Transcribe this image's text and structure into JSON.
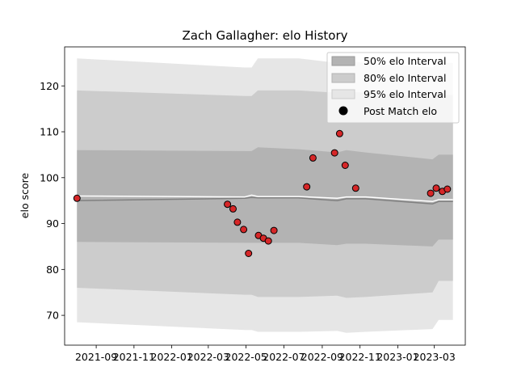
{
  "chart_data": {
    "type": "line",
    "title": "Zach Gallagher: elo History",
    "xlabel": "",
    "ylabel": "elo score",
    "xlim": [
      "2021-07-12",
      "2023-04-20"
    ],
    "ylim": [
      63.5,
      128.5
    ],
    "x_ticks": [
      "2021-09",
      "2021-11",
      "2022-01",
      "2022-03",
      "2022-05",
      "2022-07",
      "2022-09",
      "2022-11",
      "2023-01",
      "2023-03"
    ],
    "y_ticks": [
      70,
      80,
      90,
      100,
      110,
      120
    ],
    "grid": false,
    "legend_placement": "top-right",
    "legend": [
      {
        "label": "50% elo Interval",
        "color": "#b3b3b3"
      },
      {
        "label": "80% elo Interval",
        "color": "#cccccc"
      },
      {
        "label": "95% elo Interval",
        "color": "#e6e6e6"
      },
      {
        "label": "Post Match elo",
        "color": "#000000"
      }
    ],
    "bands": {
      "x": [
        "2021-08-01",
        "2022-04-29",
        "2022-05-10",
        "2022-05-20",
        "2022-07-25",
        "2022-09-25",
        "2022-10-10",
        "2022-11-10",
        "2023-02-26",
        "2023-03-08",
        "2023-03-31"
      ],
      "p95_upper": [
        126.0,
        124.0,
        124.0,
        126.0,
        126.0,
        125.0,
        125.5,
        125.0,
        124.0,
        125.0,
        125.0
      ],
      "p95_lower": [
        68.5,
        66.8,
        66.8,
        66.4,
        66.4,
        66.6,
        66.2,
        66.4,
        67.0,
        69.0,
        69.0
      ],
      "p80_upper": [
        119.0,
        117.8,
        117.8,
        119.0,
        119.0,
        118.5,
        118.8,
        118.5,
        117.5,
        118.0,
        118.0
      ],
      "p80_lower": [
        76.0,
        74.5,
        74.5,
        74.0,
        74.0,
        74.3,
        73.8,
        74.0,
        75.0,
        77.5,
        77.5
      ],
      "p50_upper": [
        106.0,
        105.8,
        105.8,
        106.6,
        106.2,
        105.5,
        106.0,
        105.5,
        104.0,
        105.0,
        105.0
      ],
      "p50_lower": [
        86.0,
        85.8,
        85.8,
        85.8,
        85.8,
        85.3,
        85.6,
        85.6,
        85.0,
        86.5,
        86.5
      ]
    },
    "mean_line": {
      "x": [
        "2021-08-01",
        "2022-04-29",
        "2022-05-10",
        "2022-05-20",
        "2022-07-25",
        "2022-09-25",
        "2022-10-10",
        "2022-11-10",
        "2023-02-26",
        "2023-03-08",
        "2023-03-31"
      ],
      "upper": [
        96.0,
        95.8,
        96.2,
        95.9,
        95.9,
        95.5,
        95.8,
        95.8,
        94.8,
        95.2,
        95.2
      ],
      "lower": [
        95.0,
        95.5,
        95.7,
        95.6,
        95.6,
        95.0,
        95.4,
        95.4,
        94.3,
        94.8,
        94.8
      ],
      "upper_color": "#ffffff",
      "lower_color": "#808080"
    },
    "points": {
      "name": "Post Match elo",
      "fill": "#d62728",
      "edge": "#000000",
      "x": [
        "2021-08-01",
        "2022-04-01",
        "2022-04-10",
        "2022-04-17",
        "2022-04-27",
        "2022-05-05",
        "2022-05-21",
        "2022-05-29",
        "2022-06-06",
        "2022-06-15",
        "2022-08-07",
        "2022-08-17",
        "2022-09-21",
        "2022-09-29",
        "2022-10-08",
        "2022-10-25",
        "2023-02-23",
        "2023-03-04",
        "2023-03-14",
        "2023-03-22"
      ],
      "y": [
        95.5,
        94.2,
        93.2,
        90.3,
        88.7,
        83.5,
        87.4,
        86.8,
        86.2,
        88.5,
        98.0,
        104.3,
        105.4,
        109.6,
        102.7,
        97.7,
        96.6,
        97.7,
        97.0,
        97.5
      ]
    }
  }
}
